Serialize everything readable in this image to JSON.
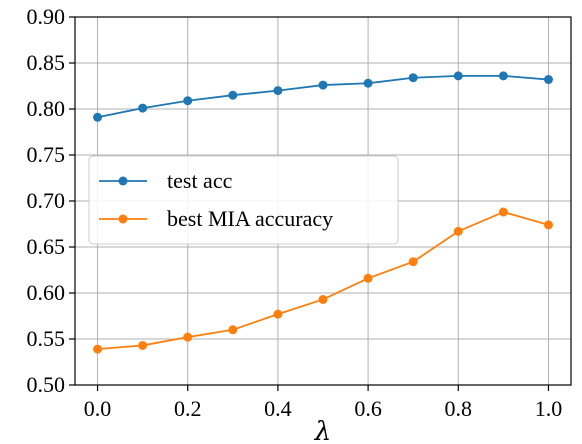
{
  "chart_data": {
    "type": "line",
    "title": "",
    "xlabel": "λ",
    "ylabel": "",
    "xlim": [
      -0.05,
      1.05
    ],
    "ylim": [
      0.5,
      0.9
    ],
    "grid": true,
    "legend_position": "center-left",
    "x_ticks": [
      "0.0",
      "0.2",
      "0.4",
      "0.6",
      "0.8",
      "1.0"
    ],
    "y_ticks": [
      "0.50",
      "0.55",
      "0.60",
      "0.65",
      "0.70",
      "0.75",
      "0.80",
      "0.85",
      "0.90"
    ],
    "x": [
      0.0,
      0.1,
      0.2,
      0.3,
      0.4,
      0.5,
      0.6,
      0.7,
      0.8,
      0.9,
      1.0
    ],
    "series": [
      {
        "name": "test acc",
        "color": "#1f77b4",
        "values": [
          0.791,
          0.801,
          0.809,
          0.815,
          0.82,
          0.826,
          0.828,
          0.834,
          0.836,
          0.836,
          0.832
        ]
      },
      {
        "name": "best MIA accuracy",
        "color": "#ff7f0e",
        "values": [
          0.539,
          0.543,
          0.552,
          0.56,
          0.577,
          0.593,
          0.616,
          0.634,
          0.667,
          0.688,
          0.674
        ]
      }
    ]
  }
}
